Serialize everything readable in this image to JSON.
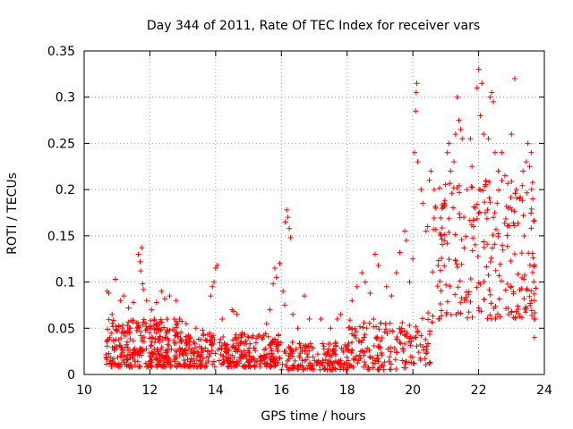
{
  "chart_data": {
    "type": "scatter",
    "title": "Day 344 of 2011, Rate Of TEC Index for receiver vars",
    "xlabel": "GPS time / hours",
    "ylabel": "ROTI / TECUs",
    "xlim": [
      10,
      24
    ],
    "ylim": [
      0,
      0.35
    ],
    "x_ticks": [
      "10",
      "12",
      "14",
      "16",
      "18",
      "20",
      "22",
      "24"
    ],
    "y_ticks": [
      "0",
      "0.05",
      "0.1",
      "0.15",
      "0.2",
      "0.25",
      "0.3",
      "0.35"
    ],
    "grid": true,
    "marker": "+",
    "color": "#ff0000",
    "series": [
      {
        "name": "ROTI",
        "points": [
          [
            10.7,
            0.09
          ],
          [
            10.75,
            0.088
          ],
          [
            10.85,
            0.065
          ],
          [
            10.95,
            0.103
          ],
          [
            11.1,
            0.08
          ],
          [
            11.2,
            0.085
          ],
          [
            11.35,
            0.072
          ],
          [
            11.5,
            0.078
          ],
          [
            11.65,
            0.13
          ],
          [
            11.7,
            0.122
          ],
          [
            11.72,
            0.112
          ],
          [
            11.75,
            0.137
          ],
          [
            11.78,
            0.098
          ],
          [
            11.8,
            0.092
          ],
          [
            11.9,
            0.08
          ],
          [
            12.05,
            0.07
          ],
          [
            12.2,
            0.078
          ],
          [
            12.35,
            0.09
          ],
          [
            12.45,
            0.082
          ],
          [
            12.6,
            0.085
          ],
          [
            12.8,
            0.08
          ],
          [
            12.9,
            0.06
          ],
          [
            13.1,
            0.055
          ],
          [
            13.4,
            0.05
          ],
          [
            13.6,
            0.048
          ],
          [
            13.85,
            0.085
          ],
          [
            13.9,
            0.095
          ],
          [
            13.95,
            0.1
          ],
          [
            14.0,
            0.115
          ],
          [
            14.05,
            0.118
          ],
          [
            14.2,
            0.06
          ],
          [
            14.5,
            0.07
          ],
          [
            14.55,
            0.068
          ],
          [
            14.65,
            0.065
          ],
          [
            14.8,
            0.045
          ],
          [
            15.1,
            0.04
          ],
          [
            15.4,
            0.04
          ],
          [
            15.55,
            0.055
          ],
          [
            15.65,
            0.07
          ],
          [
            15.75,
            0.098
          ],
          [
            15.8,
            0.115
          ],
          [
            15.85,
            0.105
          ],
          [
            15.95,
            0.12
          ],
          [
            16.05,
            0.09
          ],
          [
            16.1,
            0.075
          ],
          [
            16.12,
            0.165
          ],
          [
            16.16,
            0.178
          ],
          [
            16.2,
            0.17
          ],
          [
            16.24,
            0.158
          ],
          [
            16.28,
            0.148
          ],
          [
            16.35,
            0.065
          ],
          [
            16.5,
            0.05
          ],
          [
            16.7,
            0.085
          ],
          [
            16.85,
            0.06
          ],
          [
            17.2,
            0.06
          ],
          [
            17.5,
            0.05
          ],
          [
            17.7,
            0.06
          ],
          [
            17.8,
            0.065
          ],
          [
            18.15,
            0.08
          ],
          [
            18.3,
            0.095
          ],
          [
            18.45,
            0.11
          ],
          [
            18.55,
            0.1
          ],
          [
            18.7,
            0.088
          ],
          [
            18.85,
            0.13
          ],
          [
            18.95,
            0.118
          ],
          [
            19.2,
            0.095
          ],
          [
            19.35,
            0.085
          ],
          [
            19.5,
            0.11
          ],
          [
            19.6,
            0.132
          ],
          [
            19.75,
            0.155
          ],
          [
            19.8,
            0.145
          ],
          [
            19.9,
            0.1
          ],
          [
            20.0,
            0.125
          ],
          [
            20.05,
            0.24
          ],
          [
            20.08,
            0.285
          ],
          [
            20.1,
            0.305
          ],
          [
            20.12,
            0.315
          ],
          [
            20.15,
            0.23
          ],
          [
            20.25,
            0.2
          ],
          [
            20.3,
            0.185
          ],
          [
            20.4,
            0.155
          ],
          [
            20.45,
            0.16
          ],
          [
            20.5,
            0.21
          ],
          [
            20.55,
            0.22
          ],
          [
            20.65,
            0.2
          ],
          [
            20.7,
            0.18
          ],
          [
            20.85,
            0.15
          ],
          [
            20.95,
            0.185
          ],
          [
            21.05,
            0.24
          ],
          [
            21.1,
            0.25
          ],
          [
            21.15,
            0.22
          ],
          [
            21.25,
            0.23
          ],
          [
            21.3,
            0.26
          ],
          [
            21.35,
            0.3
          ],
          [
            21.4,
            0.275
          ],
          [
            21.45,
            0.265
          ],
          [
            21.5,
            0.255
          ],
          [
            21.55,
            0.17
          ],
          [
            21.65,
            0.2
          ],
          [
            21.75,
            0.255
          ],
          [
            21.8,
            0.225
          ],
          [
            21.85,
            0.16
          ],
          [
            21.9,
            0.18
          ],
          [
            21.95,
            0.31
          ],
          [
            22.0,
            0.33
          ],
          [
            22.05,
            0.28
          ],
          [
            22.1,
            0.315
          ],
          [
            22.15,
            0.26
          ],
          [
            22.2,
            0.175
          ],
          [
            22.3,
            0.255
          ],
          [
            22.35,
            0.3
          ],
          [
            22.4,
            0.305
          ],
          [
            22.45,
            0.295
          ],
          [
            22.5,
            0.24
          ],
          [
            22.6,
            0.22
          ],
          [
            22.7,
            0.24
          ],
          [
            22.8,
            0.215
          ],
          [
            22.9,
            0.18
          ],
          [
            23.0,
            0.26
          ],
          [
            23.1,
            0.32
          ],
          [
            23.15,
            0.2
          ],
          [
            23.25,
            0.19
          ],
          [
            23.35,
            0.22
          ],
          [
            23.45,
            0.23
          ],
          [
            23.5,
            0.25
          ],
          [
            23.55,
            0.225
          ],
          [
            23.6,
            0.24
          ],
          [
            23.65,
            0.19
          ],
          [
            23.7,
            0.08
          ],
          [
            23.72,
            0.06
          ],
          [
            23.7,
            0.04
          ]
        ]
      }
    ]
  }
}
